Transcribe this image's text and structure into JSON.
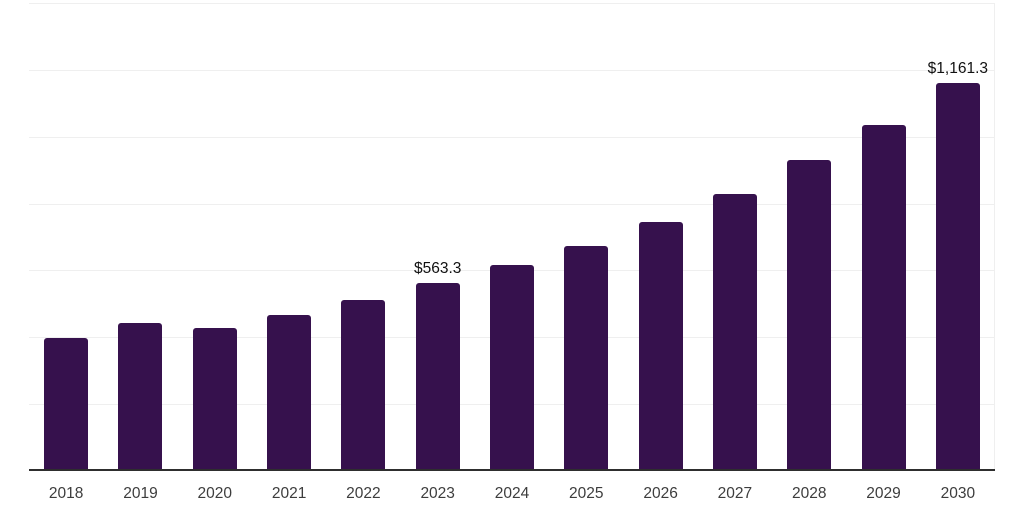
{
  "chart_data": {
    "type": "bar",
    "title": "",
    "xlabel": "",
    "ylabel": "",
    "categories": [
      "2018",
      "2019",
      "2020",
      "2021",
      "2022",
      "2023",
      "2024",
      "2025",
      "2026",
      "2027",
      "2028",
      "2029",
      "2030"
    ],
    "values": [
      397,
      444,
      429,
      466,
      512,
      563.3,
      616,
      673,
      744,
      830,
      929,
      1036,
      1161.3
    ],
    "data_labels": [
      {
        "category": "2023",
        "text": "$563.3"
      },
      {
        "category": "2030",
        "text": "$1,161.3"
      }
    ],
    "ylim": [
      0,
      1400
    ],
    "gridline_step": 200,
    "grid": "horizontal",
    "legend": "none",
    "bar_color": "#36114d",
    "axis_color": "#2e2e2e",
    "gridline_color": "#efefef",
    "data_label_color": "#111111",
    "tick_label_color": "#3d3d3d"
  }
}
